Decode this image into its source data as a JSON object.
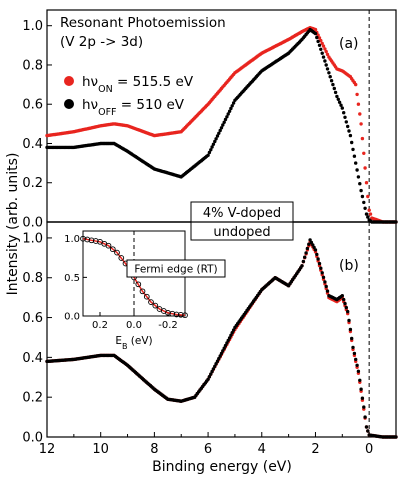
{
  "chart_data": [
    {
      "panel": "(a)",
      "type": "scatter",
      "title_line1": "Resonant Photoemission",
      "title_line2": "(V 2p -> 3d)",
      "sample_label": "4% V-doped",
      "xlabel": "Binding energy (eV)",
      "ylabel": "Intensity (arb. units)",
      "xlim": [
        12,
        -1
      ],
      "ylim": [
        0,
        1.08
      ],
      "xticks": [
        "12",
        "10",
        "8",
        "6",
        "4",
        "2",
        "0"
      ],
      "yticks": [
        "0.0",
        "0.2",
        "0.4",
        "0.6",
        "0.8",
        "1.0"
      ],
      "fermi_level_line": 0,
      "series": [
        {
          "name_main": "hν",
          "name_sub": "ON",
          "name_value": " = 515.5 eV",
          "color": "#e8251f",
          "x": [
            12,
            11,
            10,
            9.5,
            9,
            8,
            7,
            6,
            5,
            4,
            3,
            2.5,
            2.2,
            2,
            1.5,
            1.2,
            1,
            0.7,
            0.5,
            0.3,
            0.1,
            0,
            -0.1,
            -0.5,
            -1
          ],
          "y": [
            0.44,
            0.46,
            0.49,
            0.5,
            0.49,
            0.44,
            0.46,
            0.6,
            0.76,
            0.86,
            0.93,
            0.97,
            0.99,
            0.98,
            0.84,
            0.78,
            0.77,
            0.74,
            0.7,
            0.5,
            0.2,
            0.06,
            0.02,
            0.0,
            0.0
          ]
        },
        {
          "name_main": "hν",
          "name_sub": "OFF",
          "name_value": " = 510 eV",
          "color": "#000000",
          "x": [
            12,
            11,
            10,
            9.5,
            9,
            8,
            7,
            6,
            5,
            4,
            3,
            2.5,
            2.2,
            2,
            1.5,
            1.2,
            1,
            0.7,
            0.5,
            0.3,
            0.1,
            0,
            -0.1,
            -0.5,
            -1
          ],
          "y": [
            0.38,
            0.38,
            0.4,
            0.4,
            0.36,
            0.27,
            0.23,
            0.34,
            0.62,
            0.77,
            0.86,
            0.93,
            0.98,
            0.96,
            0.76,
            0.64,
            0.58,
            0.44,
            0.3,
            0.16,
            0.04,
            0.01,
            0.0,
            0.0,
            0.0
          ]
        }
      ]
    },
    {
      "panel": "(b)",
      "type": "scatter",
      "sample_label": "undoped",
      "xlabel": "Binding energy (eV)",
      "ylabel": "Intensity (arb. units)",
      "xlim": [
        12,
        -1
      ],
      "ylim": [
        0,
        1.08
      ],
      "xticks": [
        "12",
        "10",
        "8",
        "6",
        "4",
        "2",
        "0"
      ],
      "yticks": [
        "0.0",
        "0.2",
        "0.4",
        "0.6",
        "0.8",
        "1.0"
      ],
      "fermi_level_line": 0,
      "series": [
        {
          "color": "#e8251f",
          "x": [
            12,
            11,
            10,
            9.5,
            9,
            8,
            7.5,
            7,
            6.5,
            6,
            5,
            4,
            3.5,
            3,
            2.5,
            2.2,
            2,
            1.5,
            1.2,
            1,
            0.8,
            0.6,
            0.4,
            0.2,
            0.1,
            0,
            -0.5,
            -1
          ],
          "y": [
            0.38,
            0.39,
            0.41,
            0.41,
            0.36,
            0.24,
            0.19,
            0.18,
            0.2,
            0.29,
            0.54,
            0.74,
            0.8,
            0.76,
            0.86,
            0.98,
            0.93,
            0.7,
            0.68,
            0.7,
            0.62,
            0.44,
            0.32,
            0.14,
            0.05,
            0.01,
            0.0,
            0.0
          ]
        },
        {
          "color": "#000000",
          "x": [
            12,
            11,
            10,
            9.5,
            9,
            8,
            7.5,
            7,
            6.5,
            6,
            5,
            4,
            3.5,
            3,
            2.5,
            2.2,
            2,
            1.5,
            1.2,
            1,
            0.8,
            0.6,
            0.4,
            0.2,
            0.1,
            0,
            -0.5,
            -1
          ],
          "y": [
            0.38,
            0.39,
            0.41,
            0.41,
            0.36,
            0.24,
            0.19,
            0.18,
            0.2,
            0.29,
            0.55,
            0.74,
            0.8,
            0.76,
            0.86,
            0.99,
            0.94,
            0.71,
            0.69,
            0.71,
            0.63,
            0.45,
            0.33,
            0.15,
            0.05,
            0.01,
            0.0,
            0.0
          ]
        }
      ],
      "inset": {
        "type": "line",
        "label": "Fermi edge (RT)",
        "xlabel_main": "E",
        "xlabel_sub": "B",
        "xlabel_unit": " (eV)",
        "xlim": [
          0.3,
          -0.3
        ],
        "ylim": [
          0,
          1.1
        ],
        "xticks": [
          "0.2",
          "0.0",
          "-0.2"
        ],
        "yticks": [
          "0.0",
          "0.5",
          "1.0"
        ],
        "data_x": [
          0.3,
          0.25,
          0.2,
          0.15,
          0.1,
          0.05,
          0.0,
          -0.05,
          -0.1,
          -0.15,
          -0.2,
          -0.25,
          -0.3
        ],
        "data_y": [
          1.0,
          0.98,
          0.96,
          0.91,
          0.82,
          0.68,
          0.5,
          0.32,
          0.18,
          0.09,
          0.04,
          0.02,
          0.01
        ]
      }
    }
  ]
}
